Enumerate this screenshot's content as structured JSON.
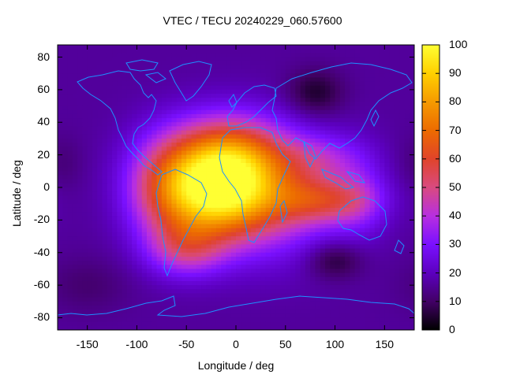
{
  "chart_data": {
    "type": "heatmap",
    "title": "VTEC / TECU 20240229_060.57600",
    "xlabel": "Longitude / deg",
    "ylabel": "Latitude / deg",
    "xlim": [
      -180,
      180
    ],
    "ylim": [
      -87.5,
      87.5
    ],
    "x_ticks": [
      -150,
      -100,
      -50,
      0,
      50,
      100,
      150
    ],
    "y_ticks": [
      80,
      60,
      40,
      20,
      0,
      -20,
      -40,
      -60,
      -80
    ],
    "colorbar": {
      "min": 0,
      "max": 100,
      "ticks": [
        100,
        90,
        80,
        70,
        60,
        50,
        40,
        30,
        20,
        10,
        0
      ],
      "palette": [
        "#000000",
        "#420066",
        "#5c00bf",
        "#7a10ff",
        "#b82fe0",
        "#d94a80",
        "#e0442a",
        "#ec6b00",
        "#f59a00",
        "#ffd000",
        "#ffff33"
      ]
    },
    "overlay": "coastlines",
    "coastline_color": "#1e90ff",
    "features": [
      {
        "type": "background",
        "value": 16
      },
      {
        "lon": -10,
        "lat": 18,
        "slon": 40,
        "slat": 18,
        "amp": 50
      },
      {
        "lon": -20,
        "lat": -7,
        "slon": 38,
        "slat": 18,
        "amp": 48
      },
      {
        "lon": 30,
        "lat": -5,
        "slon": 50,
        "slat": 25,
        "amp": 30
      },
      {
        "lon": -70,
        "lat": 0,
        "slon": 30,
        "slat": 22,
        "amp": 30
      },
      {
        "lon": -50,
        "lat": -38,
        "slon": 28,
        "slat": 12,
        "amp": 24
      },
      {
        "lon": 90,
        "lat": -8,
        "slon": 35,
        "slat": 10,
        "amp": 28
      },
      {
        "lon": 85,
        "lat": 18,
        "slon": 30,
        "slat": 10,
        "amp": 14
      },
      {
        "lon": 125,
        "lat": -5,
        "slon": 20,
        "slat": 20,
        "amp": 10
      },
      {
        "lon": 80,
        "lat": 58,
        "slon": 20,
        "slat": 10,
        "amp": -12
      },
      {
        "lon": 100,
        "lat": -45,
        "slon": 20,
        "slat": 8,
        "amp": -12
      },
      {
        "lon": -150,
        "lat": -60,
        "slon": 30,
        "slat": 12,
        "amp": -5
      },
      {
        "lon": -175,
        "lat": 15,
        "slon": 15,
        "slat": 12,
        "amp": -4
      }
    ]
  }
}
